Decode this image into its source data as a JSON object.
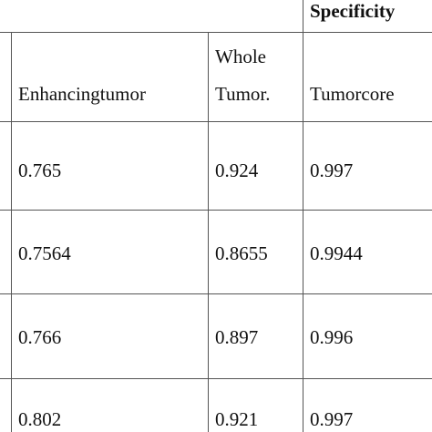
{
  "table": {
    "group_header": "Specificity",
    "columns": [
      [
        "Enhancingtumor"
      ],
      [
        "Whole",
        "Tumor."
      ],
      [
        "Tumorcore"
      ]
    ],
    "rows": [
      [
        "0.765",
        "0.924",
        "0.997"
      ],
      [
        "0.7564",
        "0.8655",
        "0.9944"
      ],
      [
        "0.766",
        "0.897",
        "0.996"
      ],
      [
        "0.802",
        "0.921",
        "0.997"
      ]
    ]
  }
}
